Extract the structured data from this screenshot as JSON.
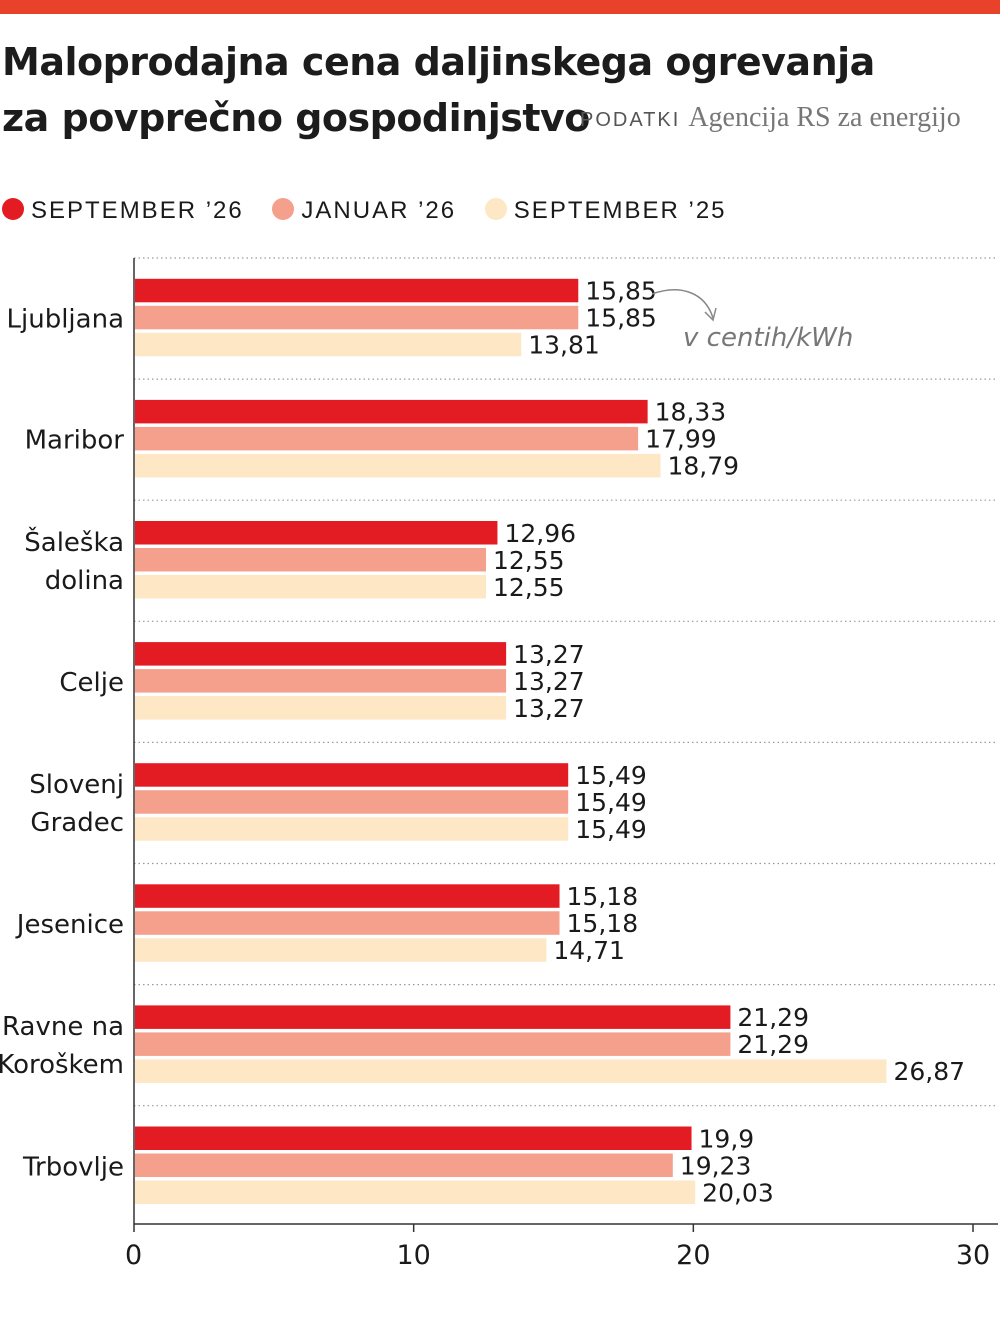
{
  "header": {
    "title_line1": "Maloprodajna cena daljinskega ogrevanja",
    "title_line2": "za povprečno gospodinjstvo",
    "source_label": "PODATKI",
    "source_text": "Agencija RS za energijo"
  },
  "chart_data": {
    "type": "bar",
    "orientation": "horizontal",
    "unit_annotation": "v centih/kWh",
    "categories": [
      "Ljubljana",
      "Maribor",
      "Šaleška dolina",
      "Celje",
      "Slovenj Gradec",
      "Jesenice",
      "Ravne na Koroškem",
      "Trbovlje"
    ],
    "category_lines": [
      [
        "Ljubljana"
      ],
      [
        "Maribor"
      ],
      [
        "Šaleška",
        "dolina"
      ],
      [
        "Celje"
      ],
      [
        "Slovenj",
        "Gradec"
      ],
      [
        "Jesenice"
      ],
      [
        "Ravne na",
        "Koroškem"
      ],
      [
        "Trbovlje"
      ]
    ],
    "series": [
      {
        "name": "SEPTEMBER ’26",
        "color": "#e31b23",
        "values": [
          15.85,
          18.33,
          12.96,
          13.27,
          15.49,
          15.18,
          21.29,
          19.9
        ],
        "labels": [
          "15,85",
          "18,33",
          "12,96",
          "13,27",
          "15,49",
          "15,18",
          "21,29",
          "19,9"
        ]
      },
      {
        "name": "JANUAR ’26",
        "color": "#f4a08c",
        "values": [
          15.85,
          17.99,
          12.55,
          13.27,
          15.49,
          15.18,
          21.29,
          19.23
        ],
        "labels": [
          "15,85",
          "17,99",
          "12,55",
          "13,27",
          "15,49",
          "15,18",
          "21,29",
          "19,23"
        ]
      },
      {
        "name": "SEPTEMBER ’25",
        "color": "#fde7c4",
        "values": [
          13.81,
          18.79,
          12.55,
          13.27,
          15.49,
          14.71,
          26.87,
          20.03
        ],
        "labels": [
          "13,81",
          "18,79",
          "12,55",
          "13,27",
          "15,49",
          "14,71",
          "26,87",
          "20,03"
        ]
      }
    ],
    "x_ticks": [
      0,
      10,
      20,
      30
    ],
    "x_tick_labels": [
      "0",
      "10",
      "20",
      "30"
    ],
    "xlim": [
      0,
      30
    ],
    "legend_position": "top-left",
    "grid": "dotted separators between categories"
  }
}
